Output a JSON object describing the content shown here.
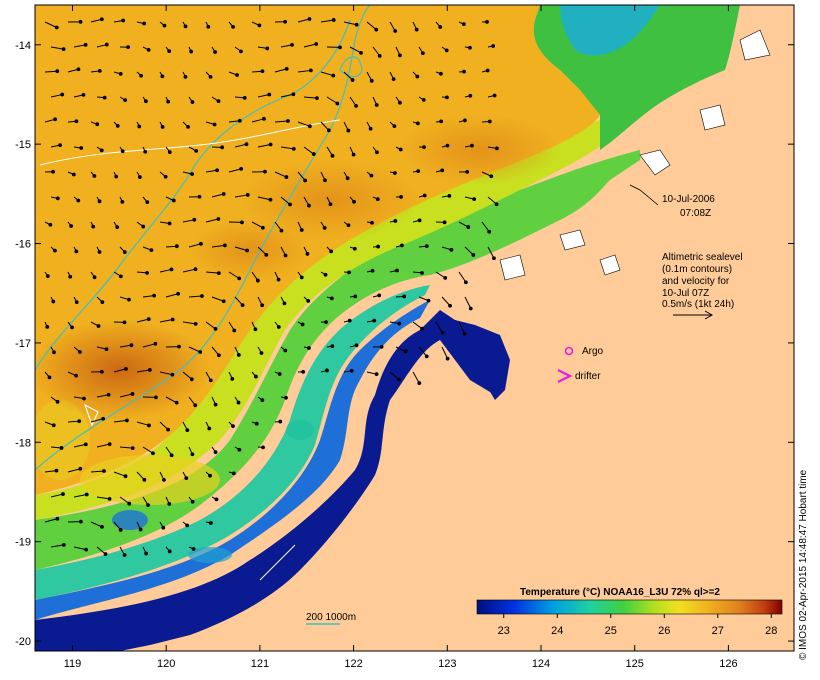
{
  "chart_data": {
    "type": "heatmap",
    "title": "",
    "x_ticks": [
      "119",
      "120",
      "121",
      "122",
      "123",
      "124",
      "125",
      "126"
    ],
    "y_ticks": [
      "-14",
      "-15",
      "-16",
      "-17",
      "-18",
      "-19",
      "-20"
    ],
    "xlim": [
      118.6,
      126.7
    ],
    "ylim": [
      -20.1,
      -13.6
    ],
    "colorbar": {
      "title": "Temperature (°C) NOAA16_L3U 72% ql>=2",
      "ticks": [
        "23",
        "24",
        "25",
        "26",
        "27",
        "28"
      ],
      "range": [
        22.5,
        28.2
      ]
    },
    "timestamp": {
      "line1": "10-Jul-2006",
      "line2": "07:08Z"
    },
    "velocity_note": [
      "Altimetric sealevel",
      "(0.1m contours)",
      "and velocity for",
      "10-Jul 07Z",
      "0.5m/s (1kt 24h)"
    ],
    "argo_label": "Argo",
    "drifter_label": "drifter",
    "depth_legend": "200  1000m",
    "credit": "© IMOS 02-Apr-2015 14:48:47 Hobart time",
    "colors": {
      "land": "#ffcc99",
      "contour_200": "#40c0c0",
      "contour_1000": "#40c0c0",
      "argo": "#e020e0",
      "drifter": "#e020e0"
    }
  }
}
